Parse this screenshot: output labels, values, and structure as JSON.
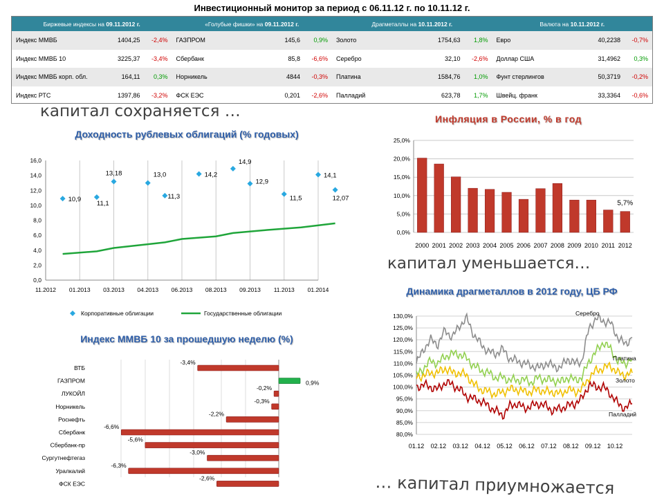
{
  "page_title": "Инвестиционный монитор за период с 06.11.12 г. по 10.11.12 г.",
  "monitor": {
    "headers": [
      {
        "label": "Биржевые индексы  на ",
        "date": "09.11.2012 г."
      },
      {
        "label": "«Голубые фишки»  на ",
        "date": "09.11.2012 г."
      },
      {
        "label": "Драгметаллы  на ",
        "date": "10.11.2012 г."
      },
      {
        "label": "Валюта  на ",
        "date": "10.11.2012 г."
      }
    ],
    "rows": [
      [
        [
          "Индекс ММВБ",
          "1404,25",
          "-2,4%"
        ],
        [
          "ГАЗПРОМ",
          "145,6",
          "0,9%"
        ],
        [
          "Золото",
          "1754,63",
          "1,8%"
        ],
        [
          "Евро",
          "40,2238",
          "-0,7%"
        ]
      ],
      [
        [
          "Индекс ММВБ 10",
          "3225,37",
          "-3,4%"
        ],
        [
          "Сбербанк",
          "85,8",
          "-6,6%"
        ],
        [
          "Серебро",
          "32,10",
          "-2,6%"
        ],
        [
          "Доллар США",
          "31,4962",
          "0,3%"
        ]
      ],
      [
        [
          "Индекс ММВБ корп. обл.",
          "164,11",
          "0,3%"
        ],
        [
          "Норникель",
          "4844",
          "-0,3%"
        ],
        [
          "Платина",
          "1584,76",
          "1,0%"
        ],
        [
          "Фунт стерлингов",
          "50,3719",
          "-0,2%"
        ]
      ],
      [
        [
          "Индекс РТС",
          "1397,86",
          "-3,2%"
        ],
        [
          "ФСК ЕЭС",
          "0,201",
          "-2,6%"
        ],
        [
          "Палладий",
          "623,78",
          "1,7%"
        ],
        [
          "Швейц. франк",
          "33,3364",
          "-0,6%"
        ]
      ]
    ]
  },
  "captions": {
    "top_left": "капитал сохраняется …",
    "mid_right": "капитал уменьшается…",
    "bottom_right": "… капитал приумножается"
  },
  "colors": {
    "header_bg": "#31869b",
    "negative": "#d00000",
    "positive": "#009a00",
    "bar_red": "#c0392b",
    "bar_green": "#22b14c",
    "line_green": "#1fa53a",
    "marker_blue": "#29a8e0"
  },
  "chart_data": [
    {
      "id": "bond_yields",
      "type": "scatter",
      "title": "Доходность рублевых облигаций (% годовых)",
      "x_tick_labels": [
        "11.2012",
        "01.2013",
        "03.2013",
        "04.2013",
        "06.2013",
        "08.2013",
        "09.2013",
        "11.2013",
        "01.2014"
      ],
      "ylim": [
        0,
        16
      ],
      "y_ticks": [
        "0,0",
        "2,0",
        "4,0",
        "6,0",
        "8,0",
        "10,0",
        "12,0",
        "14,0",
        "16,0"
      ],
      "grid": "vertical",
      "legend_position": "bottom",
      "series": [
        {
          "name": "Корпоративные облигации",
          "kind": "markers",
          "x": [
            0.5,
            1.5,
            2.0,
            3.0,
            3.5,
            4.5,
            5.5,
            6.0,
            7.0,
            8.0,
            8.5
          ],
          "y": [
            10.9,
            11.1,
            13.18,
            13.0,
            11.3,
            14.2,
            14.9,
            12.9,
            11.5,
            14.1,
            12.07
          ],
          "labels": [
            "10,9",
            "11,1",
            "13,18",
            "13,0",
            "11,3",
            "14,2",
            "14,9",
            "12,9",
            "11,5",
            "14,1",
            "12,07"
          ]
        },
        {
          "name": "Государственные облигации",
          "kind": "line",
          "x": [
            0.5,
            1.5,
            2.0,
            3.0,
            3.5,
            4.0,
            5.0,
            5.5,
            6.5,
            7.5,
            8.5
          ],
          "y": [
            3.5,
            3.85,
            4.3,
            4.8,
            5.05,
            5.5,
            5.85,
            6.3,
            6.7,
            7.05,
            7.6
          ]
        }
      ]
    },
    {
      "id": "inflation",
      "type": "bar",
      "title": "Инфляция в России, % в год",
      "categories": [
        "2000",
        "2001",
        "2002",
        "2003",
        "2004",
        "2005",
        "2006",
        "2007",
        "2008",
        "2009",
        "2010",
        "2011",
        "2012"
      ],
      "values": [
        20.2,
        18.6,
        15.1,
        12.0,
        11.7,
        10.9,
        9.0,
        11.9,
        13.3,
        8.8,
        8.8,
        6.1,
        5.7
      ],
      "data_labels": {
        "12": "5,7%"
      },
      "ylim": [
        0,
        25
      ],
      "y_ticks": [
        "0,0%",
        "5,0%",
        "10,0%",
        "15,0%",
        "20,0%",
        "25,0%"
      ],
      "grid": "horizontal"
    },
    {
      "id": "micex10",
      "type": "bar",
      "orientation": "horizontal",
      "title": "Индекс ММВБ 10 за прошедшую неделю (%)",
      "categories": [
        "ВТБ",
        "ГАЗПРОМ",
        "ЛУКОЙЛ",
        "Норникель",
        "Роснефть",
        "Сбербанк",
        "Сбербанк-пр",
        "Сургутнефтегаз",
        "Уралкалий",
        "ФСК ЕЭС"
      ],
      "values": [
        -3.4,
        0.9,
        -0.2,
        -0.3,
        -2.2,
        -6.6,
        -5.6,
        -3.0,
        -6.3,
        -2.6
      ],
      "labels": [
        "-3,4%",
        "0,9%",
        "-0,2%",
        "-0,3%",
        "-2,2%",
        "-6,6%",
        "-5,6%",
        "-3,0%",
        "-6,3%",
        "-2,6%"
      ],
      "xlim": [
        -7,
        1.5
      ]
    },
    {
      "id": "metals",
      "type": "line",
      "title": "Динамика драгметаллов в 2012 году, ЦБ РФ",
      "x_tick_labels": [
        "01.12",
        "02.12",
        "03.12",
        "04.12",
        "05.12",
        "06.12",
        "07.12",
        "08.12",
        "09.12",
        "10.12"
      ],
      "ylim": [
        80,
        130
      ],
      "y_ticks": [
        "80,0%",
        "85,0%",
        "90,0%",
        "95,0%",
        "100,0%",
        "105,0%",
        "110,0%",
        "115,0%",
        "120,0%",
        "125,0%",
        "130,0%"
      ],
      "grid": "horizontal",
      "series": [
        {
          "name": "Серебро",
          "color": "#8c8c8c",
          "y": [
            110,
            116,
            120,
            118,
            124,
            121,
            126,
            129,
            122,
            118,
            115,
            114,
            116,
            112,
            111,
            110,
            109,
            108,
            110,
            109,
            108,
            112,
            110,
            111,
            125,
            129,
            128,
            127,
            121,
            118,
            121
          ]
        },
        {
          "name": "Платина",
          "color": "#92d050",
          "y": [
            105,
            108,
            111,
            110,
            113,
            114,
            114,
            112,
            109,
            107,
            106,
            104,
            104,
            103,
            103,
            103,
            102,
            104,
            103,
            103,
            102,
            104,
            103,
            104,
            111,
            115,
            119,
            116,
            111,
            110,
            112
          ]
        },
        {
          "name": "Золото",
          "color": "#f0c000",
          "y": [
            104,
            105,
            106,
            106,
            108,
            106,
            106,
            105,
            101,
            99,
            98,
            97,
            98,
            99,
            99,
            98,
            98,
            99,
            98,
            98,
            97,
            99,
            98,
            99,
            104,
            107,
            108,
            109,
            106,
            105,
            106
          ]
        },
        {
          "name": "Палладий",
          "color": "#b00000",
          "y": [
            100,
            101,
            100,
            99,
            102,
            101,
            99,
            96,
            95,
            94,
            92,
            90,
            88,
            92,
            93,
            91,
            92,
            93,
            92,
            90,
            91,
            92,
            93,
            95,
            101,
            100,
            100,
            97,
            93,
            91,
            93
          ]
        }
      ]
    }
  ]
}
